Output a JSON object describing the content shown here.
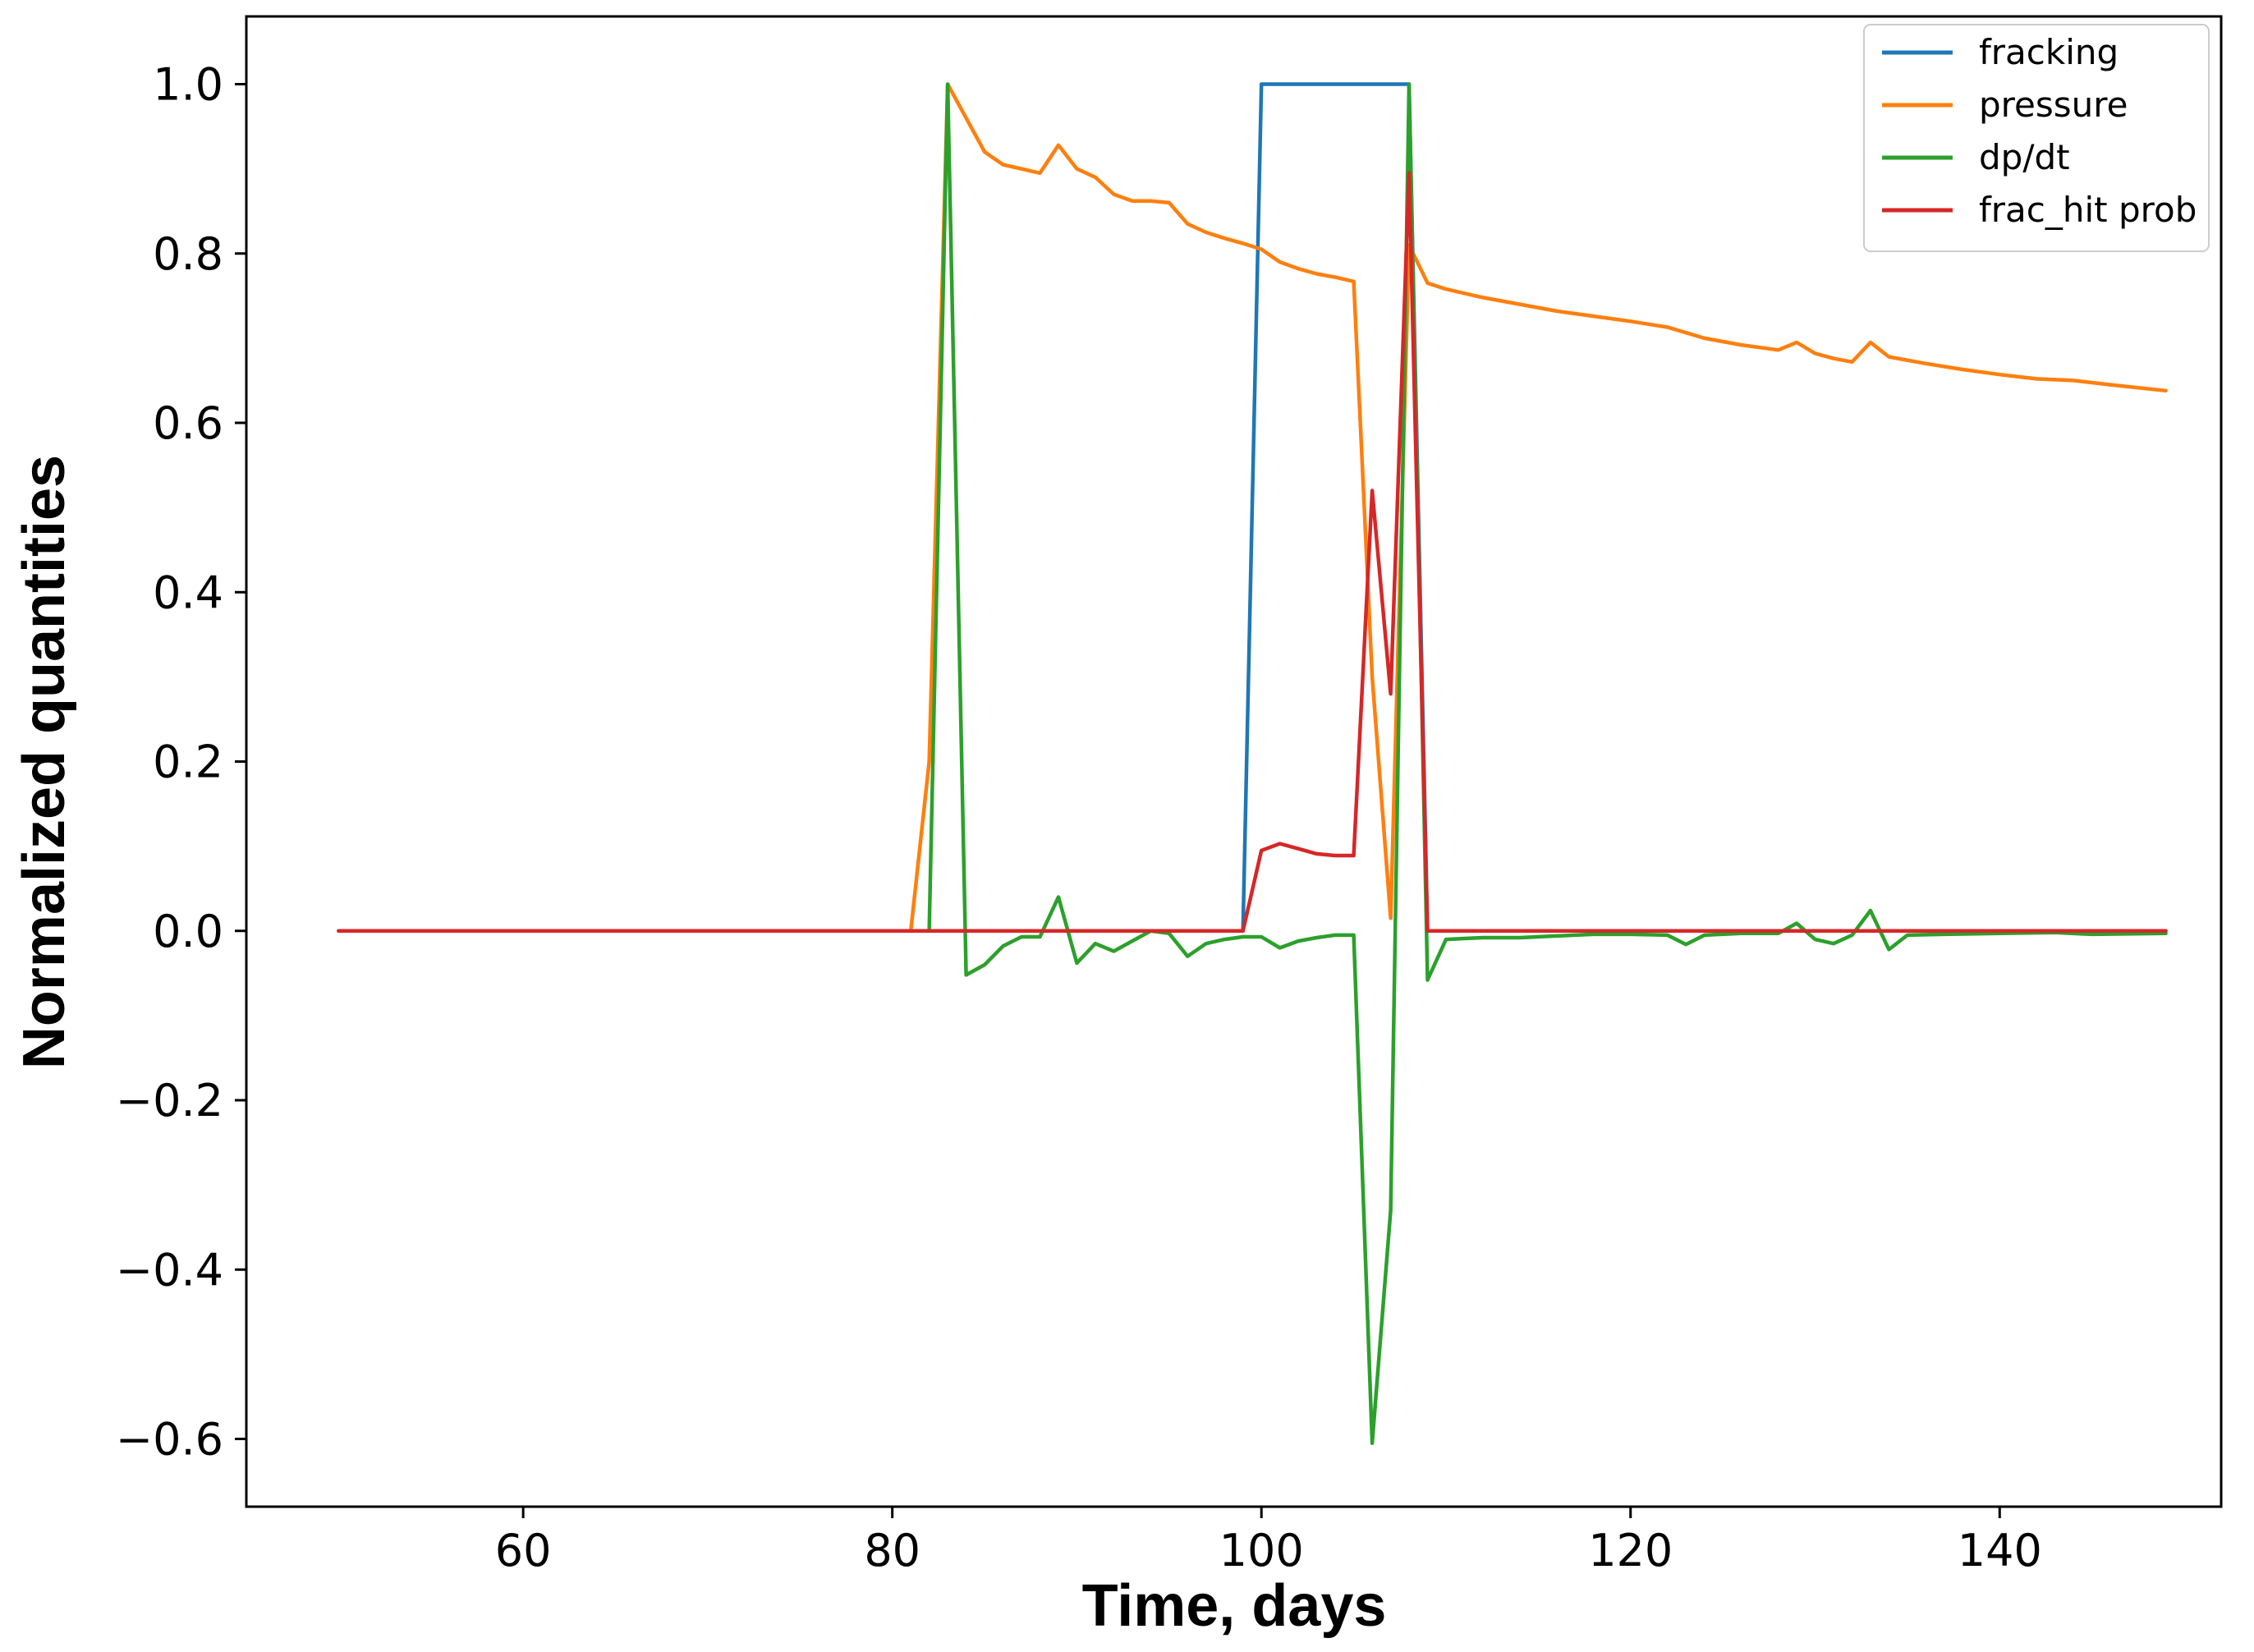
{
  "chart_data": {
    "type": "line",
    "title": "",
    "xlabel": "Time, days",
    "ylabel": "Normalized quantities",
    "xlim": [
      45,
      152
    ],
    "ylim": [
      -0.68,
      1.08
    ],
    "xticks": [
      60,
      80,
      100,
      120,
      140
    ],
    "yticks": [
      -0.6,
      -0.4,
      -0.2,
      0.0,
      0.2,
      0.4,
      0.6,
      0.8,
      1.0
    ],
    "xtick_labels": [
      "60",
      "80",
      "100",
      "120",
      "140"
    ],
    "ytick_labels": [
      "−0.6",
      "−0.4",
      "−0.2",
      "0.0",
      "0.2",
      "0.4",
      "0.6",
      "0.8",
      "1.0"
    ],
    "grid": false,
    "legend_position": "top-right",
    "series": [
      {
        "name": "fracking",
        "color": "#1f77b4",
        "x": [
          50,
          99,
          100,
          108,
          109,
          149
        ],
        "y": [
          0,
          0,
          1,
          1,
          0,
          0
        ]
      },
      {
        "name": "pressure",
        "color": "#ff7f0e",
        "x": [
          50,
          81,
          82,
          83,
          84,
          85,
          86,
          88,
          89,
          90,
          91,
          92,
          93,
          94,
          95,
          96,
          97,
          98,
          99,
          100,
          101,
          102,
          103,
          104,
          105,
          106,
          107,
          108,
          109,
          110,
          112,
          114,
          116,
          118,
          120,
          122,
          124,
          126,
          128,
          129,
          130,
          131,
          132,
          133,
          134,
          136,
          138,
          140,
          142,
          144,
          146,
          149
        ],
        "y": [
          0,
          0,
          0.2,
          1.0,
          0.96,
          0.92,
          0.905,
          0.895,
          0.928,
          0.9,
          0.89,
          0.87,
          0.862,
          0.862,
          0.86,
          0.835,
          0.825,
          0.818,
          0.812,
          0.805,
          0.79,
          0.782,
          0.776,
          0.772,
          0.767,
          0.3,
          0.015,
          0.81,
          0.765,
          0.758,
          0.748,
          0.74,
          0.732,
          0.726,
          0.72,
          0.713,
          0.7,
          0.692,
          0.686,
          0.695,
          0.682,
          0.676,
          0.672,
          0.695,
          0.678,
          0.67,
          0.663,
          0.657,
          0.652,
          0.65,
          0.645,
          0.638
        ]
      },
      {
        "name": "dp/dt",
        "color": "#2ca02c",
        "x": [
          50,
          82,
          83,
          84,
          85,
          86,
          87,
          88,
          89,
          90,
          91,
          92,
          93,
          94,
          95,
          96,
          97,
          98,
          99,
          100,
          101,
          102,
          103,
          104,
          105,
          106,
          107,
          108,
          109,
          110,
          112,
          114,
          116,
          118,
          120,
          122,
          123,
          124,
          126,
          128,
          129,
          130,
          131,
          132,
          133,
          134,
          135,
          137,
          140,
          143,
          145,
          149
        ],
        "y": [
          0,
          0,
          1.0,
          -0.052,
          -0.04,
          -0.018,
          -0.007,
          -0.007,
          0.04,
          -0.038,
          -0.015,
          -0.024,
          -0.012,
          0.0,
          -0.003,
          -0.03,
          -0.015,
          -0.01,
          -0.007,
          -0.007,
          -0.02,
          -0.012,
          -0.008,
          -0.005,
          -0.005,
          -0.605,
          -0.33,
          1.0,
          -0.058,
          -0.01,
          -0.008,
          -0.008,
          -0.006,
          -0.004,
          -0.004,
          -0.005,
          -0.016,
          -0.005,
          -0.003,
          -0.003,
          0.009,
          -0.01,
          -0.015,
          -0.005,
          0.024,
          -0.022,
          -0.005,
          -0.004,
          -0.003,
          -0.002,
          -0.004,
          -0.003
        ]
      },
      {
        "name": "frac_hit prob",
        "color": "#d62728",
        "x": [
          50,
          99,
          100,
          101,
          102,
          103,
          104,
          105,
          106,
          107,
          108,
          109,
          149
        ],
        "y": [
          0,
          0,
          0.095,
          0.103,
          0.097,
          0.091,
          0.089,
          0.089,
          0.52,
          0.28,
          0.895,
          0,
          0
        ]
      }
    ]
  }
}
